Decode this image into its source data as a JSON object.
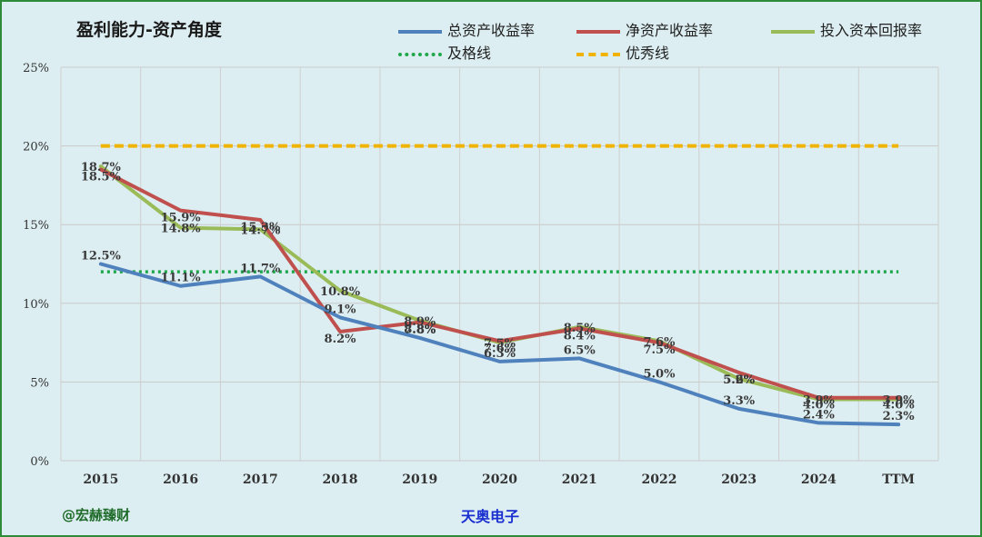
{
  "chart_data": {
    "type": "line",
    "title": "盈利能力-资产角度",
    "categories": [
      "2015",
      "2016",
      "2017",
      "2018",
      "2019",
      "2020",
      "2021",
      "2022",
      "2023",
      "2024",
      "TTM"
    ],
    "yticks": [
      "0%",
      "5%",
      "10%",
      "15%",
      "20%",
      "25%"
    ],
    "ylim": [
      0,
      25
    ],
    "series": [
      {
        "name": "总资产收益率",
        "color": "#4f81bd",
        "values": [
          12.5,
          11.1,
          11.7,
          9.1,
          7.8,
          6.3,
          6.5,
          5.0,
          3.3,
          2.4,
          2.3
        ],
        "labels": [
          "12.5%",
          "11.1%",
          "11.7%",
          "9.1%",
          "7.8%",
          "6.3%",
          "6.5%",
          "5.0%",
          "3.3%",
          "2.4%",
          "2.3%"
        ]
      },
      {
        "name": "净资产收益率",
        "color": "#c0504d",
        "values": [
          18.5,
          15.9,
          15.3,
          8.2,
          8.8,
          7.6,
          8.4,
          7.5,
          5.6,
          4.0,
          4.0
        ],
        "labels": [
          "18.5%",
          "15.9%",
          "15.3%",
          "8.2%",
          "8.8%",
          "7.6%",
          "8.4%",
          "7.5%",
          "5.6%",
          "4.0%",
          "4.0%"
        ]
      },
      {
        "name": "投入资本回报率",
        "color": "#9bbb59",
        "values": [
          18.7,
          14.8,
          14.7,
          10.8,
          8.9,
          7.5,
          8.5,
          7.6,
          5.2,
          3.9,
          3.9
        ],
        "labels": [
          "18.7%",
          "14.8%",
          "14.7%",
          "10.8%",
          "8.9%",
          "7.5%",
          "8.5%",
          "7.6%",
          "5.2%",
          "3.9%",
          "3.9%"
        ]
      },
      {
        "name": "及格线",
        "color": "#1fa84b",
        "style": "dotted",
        "values": [
          12,
          12,
          12,
          12,
          12,
          12,
          12,
          12,
          12,
          12,
          12
        ]
      },
      {
        "name": "优秀线",
        "color": "#f0b400",
        "style": "dashed",
        "values": [
          20,
          20,
          20,
          20,
          20,
          20,
          20,
          20,
          20,
          20,
          20
        ]
      }
    ]
  },
  "legend": {
    "roa": "总资产收益率",
    "roe": "净资产收益率",
    "roic": "投入资本回报率",
    "pass": "及格线",
    "excellent": "优秀线"
  },
  "footer": {
    "author": "@宏赫臻财",
    "company": "天奥电子"
  }
}
